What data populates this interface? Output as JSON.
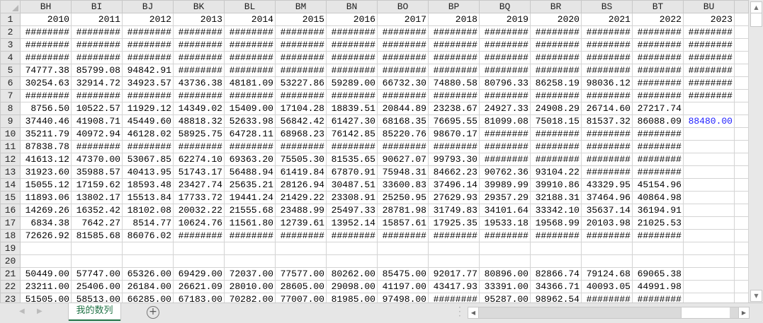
{
  "sheet": {
    "columns": [
      "BH",
      "BI",
      "BJ",
      "BK",
      "BL",
      "BM",
      "BN",
      "BO",
      "BP",
      "BQ",
      "BR",
      "BS",
      "BT",
      "BU"
    ],
    "rows": [
      {
        "n": "1",
        "cells": [
          "2010",
          "2011",
          "2012",
          "2013",
          "2014",
          "2015",
          "2016",
          "2017",
          "2018",
          "2019",
          "2020",
          "2021",
          "2022",
          "2023"
        ]
      },
      {
        "n": "2",
        "cells": [
          "########",
          "########",
          "########",
          "########",
          "########",
          "########",
          "########",
          "########",
          "########",
          "########",
          "########",
          "########",
          "########",
          "########"
        ]
      },
      {
        "n": "3",
        "cells": [
          "########",
          "########",
          "########",
          "########",
          "########",
          "########",
          "########",
          "########",
          "########",
          "########",
          "########",
          "########",
          "########",
          "########"
        ]
      },
      {
        "n": "4",
        "cells": [
          "########",
          "########",
          "########",
          "########",
          "########",
          "########",
          "########",
          "########",
          "########",
          "########",
          "########",
          "########",
          "########",
          "########"
        ]
      },
      {
        "n": "5",
        "cells": [
          "74777.38",
          "85799.08",
          "94842.91",
          "########",
          "########",
          "########",
          "########",
          "########",
          "########",
          "########",
          "########",
          "########",
          "########",
          "########"
        ]
      },
      {
        "n": "6",
        "cells": [
          "30254.63",
          "32914.72",
          "34923.57",
          "43736.38",
          "48181.09",
          "53227.86",
          "59289.00",
          "66732.30",
          "74880.58",
          "80796.33",
          "86258.19",
          "98036.12",
          "########",
          "########"
        ]
      },
      {
        "n": "7",
        "cells": [
          "########",
          "########",
          "########",
          "########",
          "########",
          "########",
          "########",
          "########",
          "########",
          "########",
          "########",
          "########",
          "########",
          "########"
        ]
      },
      {
        "n": "8",
        "cells": [
          "8756.50",
          "10522.57",
          "11929.12",
          "14349.02",
          "15409.00",
          "17104.28",
          "18839.51",
          "20844.89",
          "23238.67",
          "24927.33",
          "24908.29",
          "26714.60",
          "27217.74",
          ""
        ]
      },
      {
        "n": "9",
        "cells": [
          "37440.46",
          "41908.71",
          "45449.60",
          "48818.32",
          "52633.98",
          "56842.42",
          "61427.30",
          "68168.35",
          "76695.55",
          "81099.08",
          "75018.15",
          "81537.32",
          "86088.09",
          "88480.00"
        ]
      },
      {
        "n": "10",
        "cells": [
          "35211.79",
          "40972.94",
          "46128.02",
          "58925.75",
          "64728.11",
          "68968.23",
          "76142.85",
          "85220.76",
          "98670.17",
          "########",
          "########",
          "########",
          "########",
          ""
        ]
      },
      {
        "n": "11",
        "cells": [
          "87838.78",
          "########",
          "########",
          "########",
          "########",
          "########",
          "########",
          "########",
          "########",
          "########",
          "########",
          "########",
          "########",
          ""
        ]
      },
      {
        "n": "12",
        "cells": [
          "41613.12",
          "47370.00",
          "53067.85",
          "62274.10",
          "69363.20",
          "75505.30",
          "81535.65",
          "90627.07",
          "99793.30",
          "########",
          "########",
          "########",
          "########",
          ""
        ]
      },
      {
        "n": "13",
        "cells": [
          "31923.60",
          "35988.57",
          "40413.95",
          "51743.17",
          "56488.94",
          "61419.84",
          "67870.91",
          "75948.31",
          "84662.23",
          "90762.36",
          "93104.22",
          "########",
          "########",
          ""
        ]
      },
      {
        "n": "14",
        "cells": [
          "15055.12",
          "17159.62",
          "18593.48",
          "23427.74",
          "25635.21",
          "28126.94",
          "30487.51",
          "33600.83",
          "37496.14",
          "39989.99",
          "39910.86",
          "43329.95",
          "45154.96",
          ""
        ]
      },
      {
        "n": "15",
        "cells": [
          "11893.06",
          "13802.17",
          "15513.84",
          "17733.72",
          "19441.24",
          "21429.22",
          "23308.91",
          "25250.95",
          "27629.93",
          "29357.29",
          "32188.31",
          "37464.96",
          "40864.98",
          ""
        ]
      },
      {
        "n": "16",
        "cells": [
          "14269.26",
          "16352.42",
          "18102.08",
          "20032.22",
          "21555.68",
          "23488.99",
          "25497.33",
          "28781.98",
          "31749.83",
          "34101.64",
          "33342.10",
          "35637.14",
          "36194.91",
          ""
        ]
      },
      {
        "n": "17",
        "cells": [
          "6834.38",
          "7642.27",
          "8514.77",
          "10624.76",
          "11561.80",
          "12739.61",
          "13952.14",
          "15857.61",
          "17925.35",
          "19533.18",
          "19568.99",
          "20103.98",
          "21025.53",
          ""
        ]
      },
      {
        "n": "18",
        "cells": [
          "72626.92",
          "81585.68",
          "86076.02",
          "########",
          "########",
          "########",
          "########",
          "########",
          "########",
          "########",
          "########",
          "########",
          "########",
          ""
        ]
      },
      {
        "n": "19",
        "cells": [
          "",
          "",
          "",
          "",
          "",
          "",
          "",
          "",
          "",
          "",
          "",
          "",
          "",
          ""
        ]
      },
      {
        "n": "20",
        "cells": [
          "",
          "",
          "",
          "",
          "",
          "",
          "",
          "",
          "",
          "",
          "",
          "",
          "",
          ""
        ]
      },
      {
        "n": "21",
        "cells": [
          "50449.00",
          "57747.00",
          "65326.00",
          "69429.00",
          "72037.00",
          "77577.00",
          "80262.00",
          "85475.00",
          "92017.77",
          "80896.00",
          "82866.74",
          "79124.68",
          "69065.38",
          ""
        ]
      },
      {
        "n": "22",
        "cells": [
          "23211.00",
          "25406.00",
          "26184.00",
          "26621.09",
          "28010.00",
          "28605.00",
          "29098.00",
          "41197.00",
          "43417.93",
          "33391.00",
          "34366.71",
          "40093.05",
          "44991.98",
          ""
        ]
      },
      {
        "n": "23",
        "cells": [
          "51505.00",
          "58513.00",
          "66285.00",
          "67183.00",
          "70282.00",
          "77007.00",
          "81985.00",
          "97498.00",
          "########",
          "95287.00",
          "98962.54",
          "########",
          "########",
          ""
        ]
      }
    ],
    "highlight_cell": {
      "row": "9",
      "col": "BU",
      "color": "#1f1fff"
    }
  },
  "sheet_tabs": [
    {
      "label": "我的数列",
      "active": true
    }
  ],
  "colors": {
    "accent": "#217346",
    "header_bg": "#e6e6e6",
    "grid": "#d4d4d4"
  }
}
